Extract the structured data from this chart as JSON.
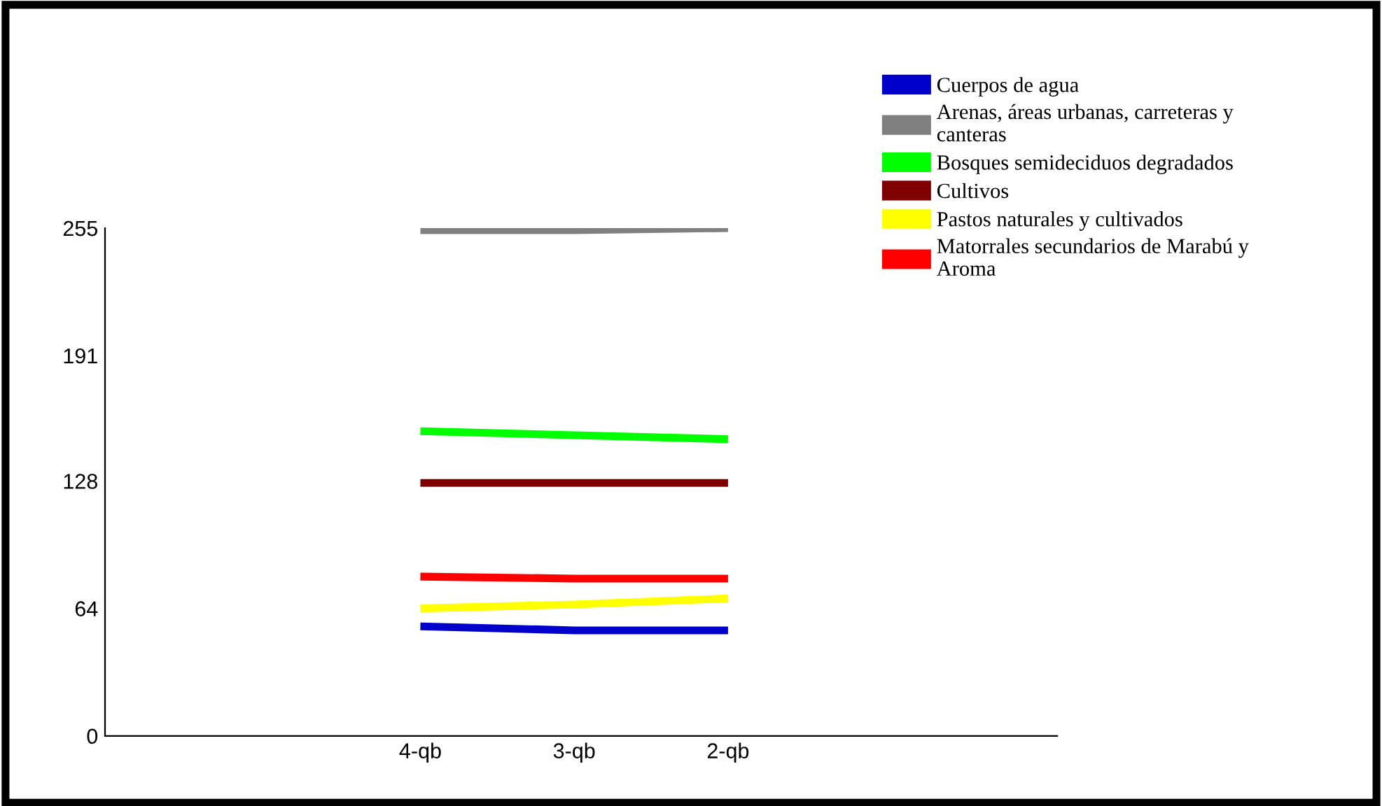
{
  "chart_data": {
    "type": "line",
    "categories": [
      null,
      null,
      "4-qb",
      "3-qb",
      "2-qb",
      null,
      null
    ],
    "ylim": [
      0,
      255
    ],
    "yticks": [
      0,
      64,
      128,
      191,
      255
    ],
    "grid": false,
    "legend": "top right",
    "marker": "none",
    "line_style": "solid",
    "series": [
      {
        "name": "Cuerpos de agua",
        "color": "#0000cc",
        "values": [
          null,
          null,
          55,
          53,
          53,
          null,
          null
        ]
      },
      {
        "name": "Arenas, áreas urbanas, carreteras y\ncanteras",
        "color": "#808080",
        "values": [
          null,
          null,
          254,
          254,
          255,
          null,
          null
        ]
      },
      {
        "name": "Bosques semideciduos degradados",
        "color": "#00ff00",
        "values": [
          null,
          null,
          153,
          151,
          149,
          null,
          null
        ]
      },
      {
        "name": "Cultivos",
        "color": "#800000",
        "values": [
          null,
          null,
          127,
          127,
          127,
          null,
          null
        ]
      },
      {
        "name": "Pastos naturales y cultivados",
        "color": "#ffff00",
        "values": [
          null,
          null,
          64,
          66,
          69,
          null,
          null
        ]
      },
      {
        "name": "Matorrales secundarios de Marabú y\nAroma",
        "color": "#ff0000",
        "values": [
          null,
          null,
          80,
          79,
          79,
          null,
          null
        ]
      }
    ]
  }
}
